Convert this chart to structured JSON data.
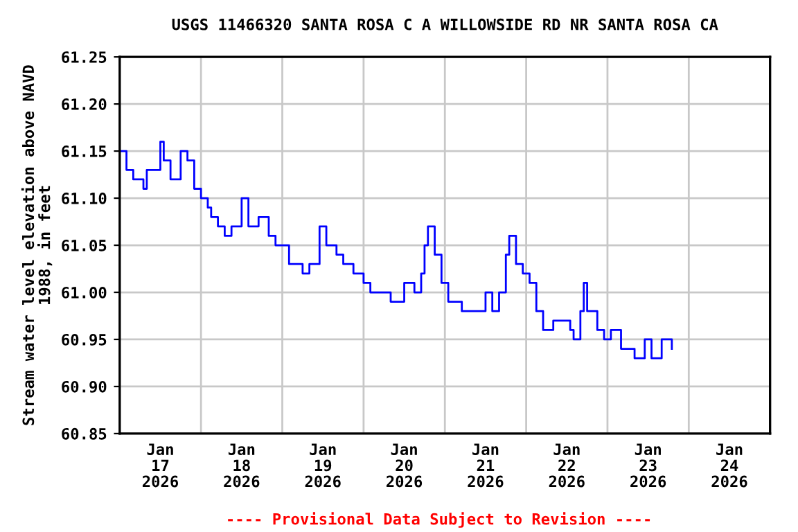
{
  "chart_data": {
    "type": "step",
    "title": "USGS 11466320 SANTA ROSA C A WILLOWSIDE RD NR SANTA ROSA CA",
    "ylabel": "Stream water level elevation above NAVD\n1988, in feet",
    "annotations": [
      "---- Provisional Data Subject to Revision ----"
    ],
    "grid": true,
    "xlim": [
      "2026-01-17T00:00",
      "2026-01-25T00:00"
    ],
    "xticks": [
      {
        "value": "2026-01-17T00:00",
        "label": null
      },
      {
        "value": "2026-01-17T12:00",
        "label": "Jan\n17\n2026"
      },
      {
        "value": "2026-01-18T00:00",
        "label": null
      },
      {
        "value": "2026-01-18T12:00",
        "label": "Jan\n18\n2026"
      },
      {
        "value": "2026-01-19T00:00",
        "label": null
      },
      {
        "value": "2026-01-19T12:00",
        "label": "Jan\n19\n2026"
      },
      {
        "value": "2026-01-20T00:00",
        "label": null
      },
      {
        "value": "2026-01-20T12:00",
        "label": "Jan\n20\n2026"
      },
      {
        "value": "2026-01-21T00:00",
        "label": null
      },
      {
        "value": "2026-01-21T12:00",
        "label": "Jan\n21\n2026"
      },
      {
        "value": "2026-01-22T00:00",
        "label": null
      },
      {
        "value": "2026-01-22T12:00",
        "label": "Jan\n22\n2026"
      },
      {
        "value": "2026-01-23T00:00",
        "label": null
      },
      {
        "value": "2026-01-23T12:00",
        "label": "Jan\n23\n2026"
      },
      {
        "value": "2026-01-24T00:00",
        "label": null
      },
      {
        "value": "2026-01-24T12:00",
        "label": "Jan\n24\n2026"
      },
      {
        "value": "2026-01-25T00:00",
        "label": null
      }
    ],
    "ylim": [
      60.85,
      61.25
    ],
    "yticks": [
      60.85,
      {
        "value": 60.9,
        "label": "60.90"
      },
      60.95,
      {
        "value": 61.0,
        "label": "61.00"
      },
      61.05,
      {
        "value": 61.1,
        "label": "61.10"
      },
      61.15,
      {
        "value": 61.2,
        "label": "61.20"
      },
      61.25
    ],
    "series": [
      {
        "color": "#0000ff",
        "x": [
          "2026-01-17T00:00",
          "2026-01-17T02:00",
          "2026-01-17T04:00",
          "2026-01-17T07:00",
          "2026-01-17T08:00",
          "2026-01-17T10:00",
          "2026-01-17T12:00",
          "2026-01-17T13:00",
          "2026-01-17T15:00",
          "2026-01-17T18:00",
          "2026-01-17T20:00",
          "2026-01-17T22:00",
          "2026-01-18T00:00",
          "2026-01-18T02:00",
          "2026-01-18T03:00",
          "2026-01-18T05:00",
          "2026-01-18T07:00",
          "2026-01-18T09:00",
          "2026-01-18T12:00",
          "2026-01-18T14:00",
          "2026-01-18T17:00",
          "2026-01-18T20:00",
          "2026-01-18T22:00",
          "2026-01-19T02:00",
          "2026-01-19T06:00",
          "2026-01-19T08:00",
          "2026-01-19T11:00",
          "2026-01-19T13:00",
          "2026-01-19T16:00",
          "2026-01-19T18:00",
          "2026-01-19T21:00",
          "2026-01-20T00:00",
          "2026-01-20T02:00",
          "2026-01-20T04:00",
          "2026-01-20T08:00",
          "2026-01-20T12:00",
          "2026-01-20T15:00",
          "2026-01-20T17:00",
          "2026-01-20T18:00",
          "2026-01-20T19:00",
          "2026-01-20T21:00",
          "2026-01-20T23:00",
          "2026-01-21T01:00",
          "2026-01-21T05:00",
          "2026-01-21T09:00",
          "2026-01-21T12:00",
          "2026-01-21T14:00",
          "2026-01-21T16:00",
          "2026-01-21T18:00",
          "2026-01-21T19:00",
          "2026-01-21T21:00",
          "2026-01-21T23:00",
          "2026-01-22T01:00",
          "2026-01-22T03:00",
          "2026-01-22T05:00",
          "2026-01-22T08:00",
          "2026-01-22T11:00",
          "2026-01-22T13:00",
          "2026-01-22T14:00",
          "2026-01-22T16:00",
          "2026-01-22T17:00",
          "2026-01-22T18:00",
          "2026-01-22T21:00",
          "2026-01-22T23:00",
          "2026-01-23T01:00",
          "2026-01-23T04:00",
          "2026-01-23T08:00",
          "2026-01-23T11:00",
          "2026-01-23T13:00",
          "2026-01-23T16:00",
          "2026-01-23T19:00"
        ],
        "values": [
          61.15,
          61.13,
          61.12,
          61.11,
          61.13,
          61.13,
          61.16,
          61.14,
          61.12,
          61.15,
          61.14,
          61.11,
          61.1,
          61.09,
          61.08,
          61.07,
          61.06,
          61.07,
          61.1,
          61.07,
          61.08,
          61.06,
          61.05,
          61.03,
          61.02,
          61.03,
          61.07,
          61.05,
          61.04,
          61.03,
          61.02,
          61.01,
          61.0,
          61.0,
          60.99,
          61.01,
          61.0,
          61.02,
          61.05,
          61.07,
          61.04,
          61.01,
          60.99,
          60.98,
          60.98,
          61.0,
          60.98,
          61.0,
          61.04,
          61.06,
          61.03,
          61.02,
          61.01,
          60.98,
          60.96,
          60.97,
          60.97,
          60.96,
          60.95,
          60.98,
          61.01,
          60.98,
          60.96,
          60.95,
          60.96,
          60.94,
          60.93,
          60.95,
          60.93,
          60.95,
          60.94
        ]
      }
    ]
  }
}
